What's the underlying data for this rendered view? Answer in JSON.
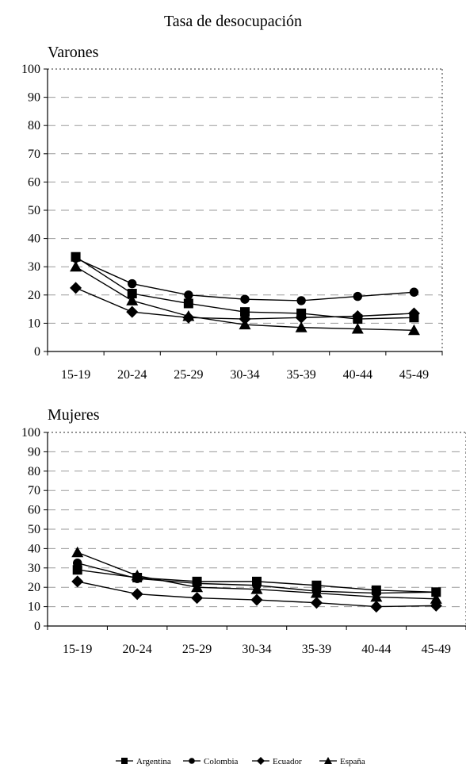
{
  "chart_data": [
    {
      "type": "line",
      "title": "Tasa de desocupación",
      "subtitle": "Varones",
      "categories": [
        "15-19",
        "20-24",
        "25-29",
        "30-34",
        "35-39",
        "40-44",
        "45-49"
      ],
      "ylim": [
        0,
        100
      ],
      "yticks": [
        "0",
        "10",
        "20",
        "30",
        "40",
        "50",
        "60",
        "70",
        "80",
        "90",
        "100"
      ],
      "grid": "horizontal dashed",
      "series": [
        {
          "name": "Argentina",
          "marker": "square",
          "values": [
            33.5,
            20.5,
            17.0,
            14.0,
            13.5,
            11.5,
            12.0
          ]
        },
        {
          "name": "Colombia",
          "marker": "circle",
          "values": [
            33.0,
            24.0,
            20.0,
            18.5,
            18.0,
            19.5,
            21.0
          ]
        },
        {
          "name": "Ecuador",
          "marker": "diamond",
          "values": [
            22.5,
            14.0,
            12.0,
            11.5,
            12.0,
            12.5,
            13.5
          ]
        },
        {
          "name": "España",
          "marker": "triangle",
          "values": [
            30.0,
            18.0,
            12.5,
            9.5,
            8.5,
            8.0,
            7.5
          ]
        }
      ]
    },
    {
      "type": "line",
      "subtitle": "Mujeres",
      "categories": [
        "15-19",
        "20-24",
        "25-29",
        "30-34",
        "35-39",
        "40-44",
        "45-49"
      ],
      "ylim": [
        0,
        100
      ],
      "yticks": [
        "0",
        "10",
        "20",
        "30",
        "40",
        "50",
        "60",
        "70",
        "80",
        "90",
        "100"
      ],
      "grid": "horizontal dashed",
      "series": [
        {
          "name": "Argentina",
          "marker": "square",
          "values": [
            29.0,
            25.0,
            23.0,
            23.0,
            21.0,
            18.5,
            17.5
          ]
        },
        {
          "name": "Colombia",
          "marker": "circle",
          "values": [
            32.5,
            24.5,
            22.0,
            21.0,
            18.0,
            17.0,
            17.5
          ]
        },
        {
          "name": "Ecuador",
          "marker": "diamond",
          "values": [
            23.0,
            16.5,
            14.5,
            13.5,
            12.0,
            10.0,
            10.5
          ]
        },
        {
          "name": "España",
          "marker": "triangle",
          "values": [
            38.0,
            26.0,
            20.0,
            19.0,
            17.0,
            15.0,
            14.0
          ]
        }
      ]
    }
  ],
  "legend": {
    "placement": "bottom",
    "items": [
      {
        "label": "Argentina",
        "marker": "square"
      },
      {
        "label": "Colombia",
        "marker": "circle"
      },
      {
        "label": "Ecuador",
        "marker": "diamond"
      },
      {
        "label": "España",
        "marker": "triangle"
      }
    ]
  },
  "colors": {
    "line": "#000000",
    "grid": "#9a9a9a",
    "frame": "#555555"
  }
}
